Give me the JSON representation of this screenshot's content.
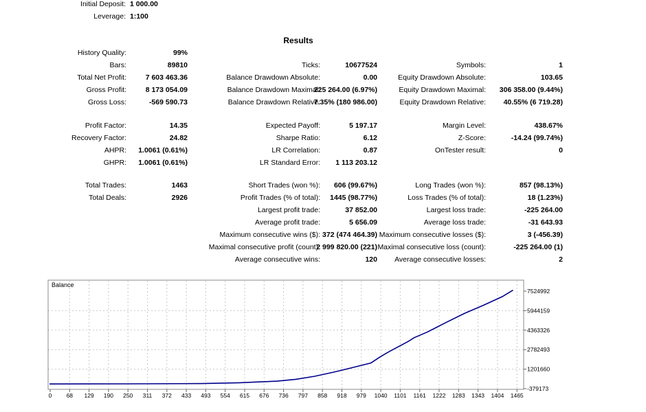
{
  "header": {
    "initial_deposit_label": "Initial Deposit:",
    "initial_deposit": "1 000.00",
    "leverage_label": "Leverage:",
    "leverage": "1:100"
  },
  "results_title": "Results",
  "history_quality": {
    "label": "History Quality:",
    "value": "99%"
  },
  "stats": {
    "col1": [
      {
        "label": "Bars:",
        "value": "89810"
      },
      {
        "label": "Total Net Profit:",
        "value": "7 603 463.36"
      },
      {
        "label": "Gross Profit:",
        "value": "8 173 054.09"
      },
      {
        "label": "Gross Loss:",
        "value": "-569 590.73"
      },
      {
        "label": "Profit Factor:",
        "value": "14.35"
      },
      {
        "label": "Recovery Factor:",
        "value": "24.82"
      },
      {
        "label": "AHPR:",
        "value": "1.0061 (0.61%)"
      },
      {
        "label": "GHPR:",
        "value": "1.0061 (0.61%)"
      },
      {
        "label": "Total Trades:",
        "value": "1463"
      },
      {
        "label": "Total Deals:",
        "value": "2926"
      }
    ],
    "col2": [
      {
        "label": "Ticks:",
        "value": "10677524"
      },
      {
        "label": "Balance Drawdown Absolute:",
        "value": "0.00"
      },
      {
        "label": "Balance Drawdown Maximal:",
        "value": "225 264.00 (6.97%)"
      },
      {
        "label": "Balance Drawdown Relative:",
        "value": "7.35% (180 986.00)"
      },
      {
        "label": "Expected Payoff:",
        "value": "5 197.17"
      },
      {
        "label": "Sharpe Ratio:",
        "value": "6.12"
      },
      {
        "label": "LR Correlation:",
        "value": "0.87"
      },
      {
        "label": "LR Standard Error:",
        "value": "1 113 203.12"
      },
      {
        "label": "Short Trades (won %):",
        "value": "606 (99.67%)"
      },
      {
        "label": "Profit Trades (% of total):",
        "value": "1445 (98.77%)"
      },
      {
        "label": "Largest profit trade:",
        "value": "37 852.00"
      },
      {
        "label": "Average profit trade:",
        "value": "5 656.09"
      },
      {
        "label": "Maximum consecutive wins ($):",
        "value": "372 (474 464.39)"
      },
      {
        "label": "Maximal consecutive profit (count):",
        "value": "2 999 820.00 (221)"
      },
      {
        "label": "Average consecutive wins:",
        "value": "120"
      }
    ],
    "col3": [
      {
        "label": "Symbols:",
        "value": "1"
      },
      {
        "label": "Equity Drawdown Absolute:",
        "value": "103.65"
      },
      {
        "label": "Equity Drawdown Maximal:",
        "value": "306 358.00 (9.44%)"
      },
      {
        "label": "Equity Drawdown Relative:",
        "value": "40.55% (6 719.28)"
      },
      {
        "label": "Margin Level:",
        "value": "438.67%"
      },
      {
        "label": "Z-Score:",
        "value": "-14.24 (99.74%)"
      },
      {
        "label": "OnTester result:",
        "value": "0"
      },
      {
        "label": "Long Trades (won %):",
        "value": "857 (98.13%)"
      },
      {
        "label": "Loss Trades (% of total):",
        "value": "18 (1.23%)"
      },
      {
        "label": "Largest loss trade:",
        "value": "-225 264.00"
      },
      {
        "label": "Average loss trade:",
        "value": "-31 643.93"
      },
      {
        "label": "Maximum consecutive losses ($):",
        "value": "3 (-456.39)"
      },
      {
        "label": "Maximal consecutive loss (count):",
        "value": "-225 264.00 (1)"
      },
      {
        "label": "Average consecutive losses:",
        "value": "2"
      }
    ]
  },
  "chart_data": {
    "type": "line",
    "title": "Balance",
    "line_color": "#00008b",
    "x_ticks": [
      "0",
      "68",
      "129",
      "190",
      "250",
      "311",
      "372",
      "433",
      "493",
      "554",
      "615",
      "676",
      "736",
      "797",
      "858",
      "918",
      "979",
      "1040",
      "1101",
      "1161",
      "1222",
      "1283",
      "1343",
      "1404",
      "1465"
    ],
    "y_ticks": [
      "7524992",
      "5944159",
      "4363326",
      "2782493",
      "1201660",
      "-379173"
    ],
    "xlim": [
      0,
      1530
    ],
    "ylim": [
      -379173,
      7524992
    ],
    "grid": true,
    "series": [
      {
        "x": [
          0,
          250,
          493,
          615,
          736,
          797,
          858,
          918,
          979,
          1040,
          1070,
          1101,
          1120,
          1161,
          1180,
          1222,
          1283,
          1343,
          1404,
          1465,
          1500
        ],
        "y": [
          1000,
          10000,
          30000,
          100000,
          230000,
          380000,
          620000,
          950000,
          1320000,
          1700000,
          2200000,
          2650000,
          2900000,
          3450000,
          3750000,
          4200000,
          4980000,
          5720000,
          6380000,
          7080000,
          7603463
        ]
      }
    ]
  }
}
